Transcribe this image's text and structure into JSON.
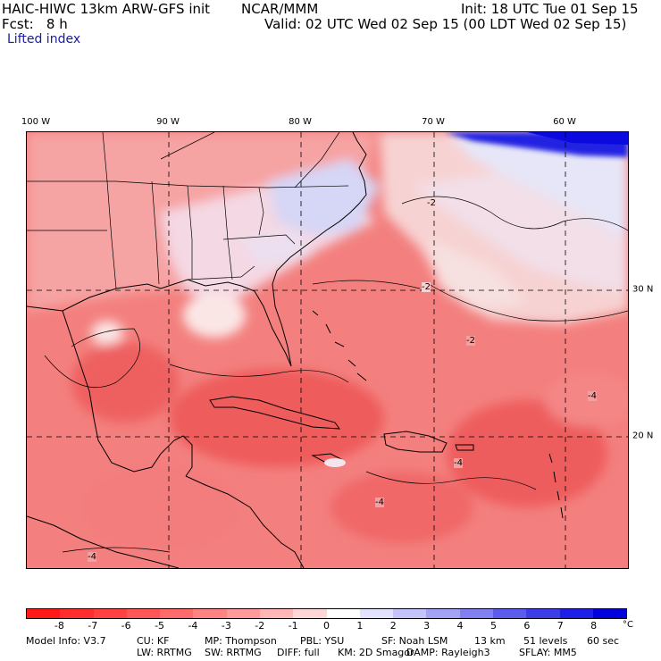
{
  "header": {
    "model_title": "HAIC-HIWC 13km ARW-GFS init",
    "org": "NCAR/MMM",
    "init": "Init: 18 UTC Tue 01 Sep 15",
    "fcst": "Fcst:   8 h",
    "valid": "Valid: 02 UTC Wed 02 Sep 15 (00 LDT Wed 02 Sep 15)",
    "field": "Lifted index"
  },
  "map": {
    "lon_labels": [
      "100 W",
      "90 W",
      "80 W",
      "70 W",
      "60 W"
    ],
    "lat_labels": [
      "30 N",
      "20 N"
    ],
    "contour_labels": [
      "-2",
      "-2",
      "-2",
      "-4",
      "-4",
      "-4",
      "-4"
    ],
    "colors": {
      "land_bg": "#f4a1a1",
      "ocean_bg": "#f3807e",
      "deep": "#ee5e5e",
      "pale": "#fbe2e2",
      "light_blue": "#dcdcf6",
      "mid_blue": "#9aa0ee",
      "dark_blue": "#1e1ee6"
    }
  },
  "colorbar": {
    "labels": [
      "-8",
      "-7",
      "-6",
      "-5",
      "-4",
      "-3",
      "-2",
      "-1",
      "0",
      "1",
      "2",
      "3",
      "4",
      "5",
      "6",
      "7",
      "8"
    ],
    "unit": "°C",
    "colors": [
      "#ff1a1a",
      "#ff2e2e",
      "#ff4141",
      "#ff5656",
      "#ff6b6b",
      "#ff8383",
      "#ff9a9a",
      "#ffb6b6",
      "#ffd6d6",
      "#ffffff",
      "#e3e3ff",
      "#c4c4fa",
      "#a3a3f5",
      "#8080f0",
      "#5c5cec",
      "#3d3de8",
      "#1e1ee6",
      "#0000dd"
    ]
  },
  "info": {
    "line1": [
      "Model Info: V3.7",
      "CU: KF",
      "MP: Thompson",
      "PBL: YSU",
      "SF: Noah LSM",
      "13 km",
      "51 levels",
      "60 sec"
    ],
    "line2": [
      "LW: RRTMG",
      "SW: RRTMG",
      "DIFF: full",
      "KM: 2D Smagor",
      "DAMP: Rayleigh3",
      "SFLAY: MM5"
    ]
  }
}
